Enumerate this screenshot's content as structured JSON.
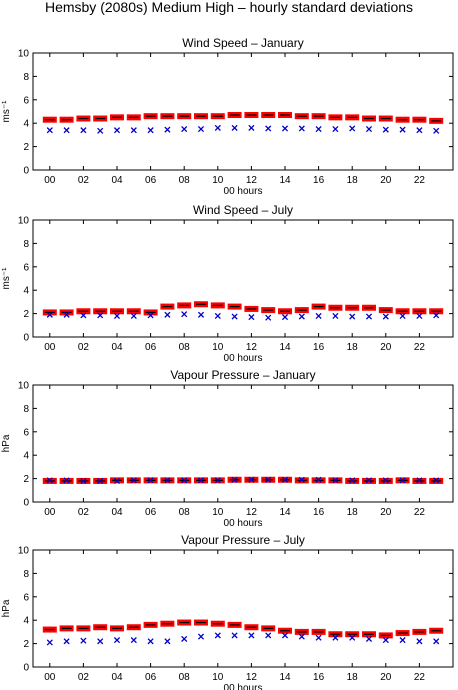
{
  "figure": {
    "title": "Hemsby (2080s) Medium High – hourly standard deviations"
  },
  "colors": {
    "ensemble": "#ff0000",
    "mean_bar": "#000000",
    "observed": "#0000cc"
  },
  "legend": "none",
  "chart_data": [
    {
      "type": "scatter",
      "title": "Wind Speed – January",
      "xlabel": "00 hours",
      "ylabel": "ms⁻¹",
      "xlim": [
        -1,
        24
      ],
      "ylim": [
        0,
        10
      ],
      "xticks": [
        "00",
        "02",
        "04",
        "06",
        "08",
        "10",
        "12",
        "14",
        "16",
        "18",
        "20",
        "22"
      ],
      "yticks": [
        "0",
        "2",
        "4",
        "6",
        "8",
        "10"
      ],
      "grid": false,
      "x": [
        0,
        1,
        2,
        3,
        4,
        5,
        6,
        7,
        8,
        9,
        10,
        11,
        12,
        13,
        14,
        15,
        16,
        17,
        18,
        19,
        20,
        21,
        22,
        23
      ],
      "series": [
        {
          "marker": "red-band",
          "values": [
            4.3,
            4.3,
            4.4,
            4.4,
            4.5,
            4.5,
            4.6,
            4.6,
            4.6,
            4.6,
            4.6,
            4.7,
            4.7,
            4.7,
            4.7,
            4.6,
            4.6,
            4.5,
            4.5,
            4.4,
            4.4,
            4.3,
            4.3,
            4.2
          ]
        },
        {
          "marker": "x",
          "values": [
            3.4,
            3.4,
            3.4,
            3.35,
            3.4,
            3.4,
            3.4,
            3.45,
            3.5,
            3.5,
            3.6,
            3.6,
            3.6,
            3.55,
            3.55,
            3.55,
            3.5,
            3.5,
            3.55,
            3.5,
            3.45,
            3.45,
            3.4,
            3.35
          ]
        }
      ]
    },
    {
      "type": "scatter",
      "title": "Wind Speed – July",
      "xlabel": "00 hours",
      "ylabel": "ms⁻¹",
      "xlim": [
        -1,
        24
      ],
      "ylim": [
        0,
        10
      ],
      "xticks": [
        "00",
        "02",
        "04",
        "06",
        "08",
        "10",
        "12",
        "14",
        "16",
        "18",
        "20",
        "22"
      ],
      "yticks": [
        "0",
        "2",
        "4",
        "6",
        "8",
        "10"
      ],
      "grid": false,
      "x": [
        0,
        1,
        2,
        3,
        4,
        5,
        6,
        7,
        8,
        9,
        10,
        11,
        12,
        13,
        14,
        15,
        16,
        17,
        18,
        19,
        20,
        21,
        22,
        23
      ],
      "series": [
        {
          "marker": "red-band",
          "values": [
            2.1,
            2.1,
            2.2,
            2.2,
            2.2,
            2.2,
            2.1,
            2.6,
            2.7,
            2.8,
            2.7,
            2.6,
            2.4,
            2.3,
            2.2,
            2.3,
            2.6,
            2.5,
            2.5,
            2.5,
            2.3,
            2.2,
            2.2,
            2.2
          ]
        },
        {
          "marker": "x",
          "values": [
            1.9,
            1.9,
            1.85,
            1.85,
            1.8,
            1.8,
            1.85,
            1.9,
            1.95,
            1.9,
            1.8,
            1.75,
            1.7,
            1.65,
            1.7,
            1.75,
            1.8,
            1.8,
            1.75,
            1.75,
            1.75,
            1.8,
            1.8,
            1.85
          ]
        }
      ]
    },
    {
      "type": "scatter",
      "title": "Vapour Pressure – January",
      "xlabel": "00 hours",
      "ylabel": "hPa",
      "xlim": [
        -1,
        24
      ],
      "ylim": [
        0,
        10
      ],
      "xticks": [
        "00",
        "02",
        "04",
        "06",
        "08",
        "10",
        "12",
        "14",
        "16",
        "18",
        "20",
        "22"
      ],
      "yticks": [
        "0",
        "2",
        "4",
        "6",
        "8",
        "10"
      ],
      "grid": false,
      "x": [
        0,
        1,
        2,
        3,
        4,
        5,
        6,
        7,
        8,
        9,
        10,
        11,
        12,
        13,
        14,
        15,
        16,
        17,
        18,
        19,
        20,
        21,
        22,
        23
      ],
      "series": [
        {
          "marker": "red-band",
          "values": [
            1.8,
            1.8,
            1.8,
            1.8,
            1.85,
            1.85,
            1.85,
            1.85,
            1.85,
            1.85,
            1.85,
            1.9,
            1.9,
            1.9,
            1.9,
            1.85,
            1.85,
            1.85,
            1.8,
            1.8,
            1.8,
            1.85,
            1.8,
            1.8
          ]
        },
        {
          "marker": "x",
          "values": [
            1.85,
            1.85,
            1.8,
            1.8,
            1.8,
            1.85,
            1.85,
            1.85,
            1.85,
            1.85,
            1.85,
            1.9,
            1.9,
            1.9,
            1.9,
            1.9,
            1.9,
            1.85,
            1.85,
            1.85,
            1.85,
            1.85,
            1.85,
            1.85
          ]
        }
      ]
    },
    {
      "type": "scatter",
      "title": "Vapour Pressure – July",
      "xlabel": "00 hours",
      "ylabel": "hPa",
      "xlim": [
        -1,
        24
      ],
      "ylim": [
        0,
        10
      ],
      "xticks": [
        "00",
        "02",
        "04",
        "06",
        "08",
        "10",
        "12",
        "14",
        "16",
        "18",
        "20",
        "22"
      ],
      "yticks": [
        "0",
        "2",
        "4",
        "6",
        "8",
        "10"
      ],
      "grid": false,
      "x": [
        0,
        1,
        2,
        3,
        4,
        5,
        6,
        7,
        8,
        9,
        10,
        11,
        12,
        13,
        14,
        15,
        16,
        17,
        18,
        19,
        20,
        21,
        22,
        23
      ],
      "series": [
        {
          "marker": "red-band",
          "values": [
            3.2,
            3.3,
            3.3,
            3.4,
            3.3,
            3.4,
            3.6,
            3.7,
            3.8,
            3.8,
            3.7,
            3.6,
            3.4,
            3.3,
            3.1,
            3.0,
            3.0,
            2.8,
            2.8,
            2.8,
            2.7,
            2.9,
            3.0,
            3.1
          ]
        },
        {
          "marker": "x",
          "values": [
            2.1,
            2.2,
            2.25,
            2.2,
            2.3,
            2.3,
            2.2,
            2.2,
            2.4,
            2.6,
            2.7,
            2.7,
            2.7,
            2.7,
            2.7,
            2.6,
            2.5,
            2.5,
            2.5,
            2.4,
            2.3,
            2.3,
            2.2,
            2.2
          ]
        }
      ]
    }
  ]
}
